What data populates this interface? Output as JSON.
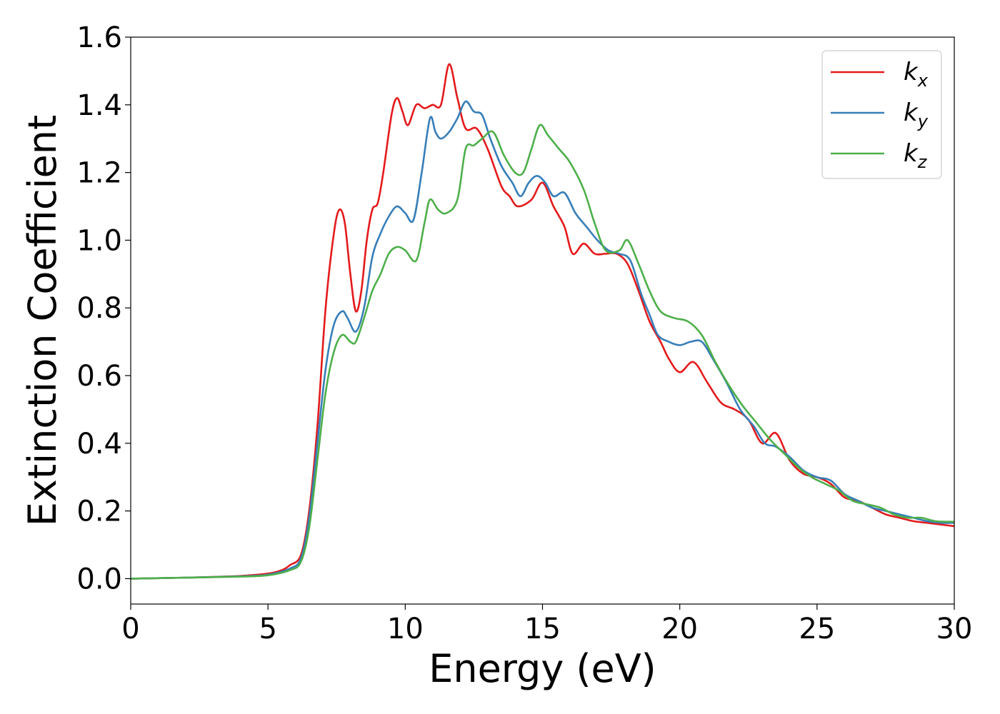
{
  "chart_data": {
    "type": "line",
    "title": "",
    "xlabel": "Energy (eV)",
    "ylabel": "Extinction Coefficient",
    "xlim": [
      0,
      30
    ],
    "ylim": [
      -0.075,
      1.6
    ],
    "xticks": [
      0,
      5,
      10,
      15,
      20,
      25,
      30
    ],
    "yticks": [
      0.0,
      0.2,
      0.4,
      0.6,
      0.8,
      1.0,
      1.2,
      1.4,
      1.6
    ],
    "xtick_labels": [
      "0",
      "5",
      "10",
      "15",
      "20",
      "25",
      "30"
    ],
    "ytick_labels": [
      "0.0",
      "0.2",
      "0.4",
      "0.6",
      "0.8",
      "1.0",
      "1.2",
      "1.4",
      "1.6"
    ],
    "grid": false,
    "legend_position": "top-right",
    "series": [
      {
        "name": "k_x",
        "legend_base": "k",
        "legend_sub": "x",
        "color": "#e41a1c",
        "points": [
          [
            0,
            0.0
          ],
          [
            2,
            0.003
          ],
          [
            4,
            0.008
          ],
          [
            5,
            0.015
          ],
          [
            5.5,
            0.025
          ],
          [
            5.8,
            0.04
          ],
          [
            6.2,
            0.07
          ],
          [
            6.5,
            0.2
          ],
          [
            6.8,
            0.45
          ],
          [
            7.1,
            0.8
          ],
          [
            7.4,
            1.02
          ],
          [
            7.6,
            1.09
          ],
          [
            7.8,
            1.05
          ],
          [
            8.0,
            0.9
          ],
          [
            8.2,
            0.79
          ],
          [
            8.4,
            0.85
          ],
          [
            8.6,
            1.0
          ],
          [
            8.8,
            1.09
          ],
          [
            9.0,
            1.11
          ],
          [
            9.2,
            1.2
          ],
          [
            9.5,
            1.37
          ],
          [
            9.7,
            1.42
          ],
          [
            9.9,
            1.38
          ],
          [
            10.1,
            1.34
          ],
          [
            10.4,
            1.4
          ],
          [
            10.7,
            1.39
          ],
          [
            11.0,
            1.4
          ],
          [
            11.3,
            1.4
          ],
          [
            11.6,
            1.52
          ],
          [
            11.9,
            1.42
          ],
          [
            12.2,
            1.33
          ],
          [
            12.6,
            1.33
          ],
          [
            13.0,
            1.27
          ],
          [
            13.5,
            1.16
          ],
          [
            13.8,
            1.13
          ],
          [
            14.1,
            1.1
          ],
          [
            14.6,
            1.12
          ],
          [
            15.0,
            1.17
          ],
          [
            15.4,
            1.1
          ],
          [
            15.8,
            1.04
          ],
          [
            16.1,
            0.96
          ],
          [
            16.5,
            0.99
          ],
          [
            16.9,
            0.96
          ],
          [
            17.3,
            0.96
          ],
          [
            17.7,
            0.96
          ],
          [
            18.1,
            0.93
          ],
          [
            18.5,
            0.85
          ],
          [
            18.9,
            0.76
          ],
          [
            19.3,
            0.7
          ],
          [
            19.6,
            0.65
          ],
          [
            20.0,
            0.61
          ],
          [
            20.5,
            0.64
          ],
          [
            21.0,
            0.58
          ],
          [
            21.5,
            0.52
          ],
          [
            22.0,
            0.5
          ],
          [
            22.5,
            0.47
          ],
          [
            23.0,
            0.4
          ],
          [
            23.5,
            0.43
          ],
          [
            24.0,
            0.35
          ],
          [
            24.5,
            0.31
          ],
          [
            25.0,
            0.3
          ],
          [
            25.5,
            0.28
          ],
          [
            26.0,
            0.24
          ],
          [
            26.5,
            0.23
          ],
          [
            27.0,
            0.21
          ],
          [
            27.5,
            0.19
          ],
          [
            28.0,
            0.18
          ],
          [
            28.5,
            0.17
          ],
          [
            29.0,
            0.165
          ],
          [
            29.5,
            0.16
          ],
          [
            30.0,
            0.155
          ]
        ]
      },
      {
        "name": "k_y",
        "legend_base": "k",
        "legend_sub": "y",
        "color": "#377eb8",
        "points": [
          [
            0,
            0.0
          ],
          [
            2,
            0.003
          ],
          [
            4,
            0.007
          ],
          [
            5,
            0.012
          ],
          [
            5.8,
            0.03
          ],
          [
            6.2,
            0.06
          ],
          [
            6.5,
            0.18
          ],
          [
            6.8,
            0.4
          ],
          [
            7.1,
            0.62
          ],
          [
            7.4,
            0.75
          ],
          [
            7.7,
            0.79
          ],
          [
            7.9,
            0.77
          ],
          [
            8.2,
            0.73
          ],
          [
            8.5,
            0.8
          ],
          [
            8.8,
            0.95
          ],
          [
            9.1,
            1.02
          ],
          [
            9.4,
            1.07
          ],
          [
            9.7,
            1.1
          ],
          [
            10.0,
            1.08
          ],
          [
            10.3,
            1.06
          ],
          [
            10.6,
            1.2
          ],
          [
            10.9,
            1.36
          ],
          [
            11.1,
            1.32
          ],
          [
            11.3,
            1.3
          ],
          [
            11.6,
            1.32
          ],
          [
            11.9,
            1.36
          ],
          [
            12.2,
            1.41
          ],
          [
            12.5,
            1.38
          ],
          [
            12.8,
            1.37
          ],
          [
            13.1,
            1.3
          ],
          [
            13.5,
            1.22
          ],
          [
            13.9,
            1.17
          ],
          [
            14.2,
            1.13
          ],
          [
            14.5,
            1.17
          ],
          [
            14.8,
            1.19
          ],
          [
            15.1,
            1.17
          ],
          [
            15.4,
            1.13
          ],
          [
            15.8,
            1.14
          ],
          [
            16.2,
            1.08
          ],
          [
            16.6,
            1.04
          ],
          [
            17.0,
            1.0
          ],
          [
            17.4,
            0.97
          ],
          [
            17.8,
            0.96
          ],
          [
            18.2,
            0.94
          ],
          [
            18.6,
            0.84
          ],
          [
            18.9,
            0.78
          ],
          [
            19.2,
            0.72
          ],
          [
            19.6,
            0.7
          ],
          [
            20.0,
            0.69
          ],
          [
            20.4,
            0.7
          ],
          [
            20.8,
            0.7
          ],
          [
            21.2,
            0.65
          ],
          [
            21.7,
            0.58
          ],
          [
            22.2,
            0.5
          ],
          [
            22.7,
            0.45
          ],
          [
            23.1,
            0.4
          ],
          [
            23.5,
            0.39
          ],
          [
            24.0,
            0.36
          ],
          [
            24.5,
            0.32
          ],
          [
            25.0,
            0.3
          ],
          [
            25.5,
            0.29
          ],
          [
            26.0,
            0.25
          ],
          [
            26.5,
            0.23
          ],
          [
            27.0,
            0.21
          ],
          [
            27.5,
            0.2
          ],
          [
            28.0,
            0.19
          ],
          [
            28.5,
            0.18
          ],
          [
            29.0,
            0.17
          ],
          [
            29.5,
            0.165
          ],
          [
            30.0,
            0.165
          ]
        ]
      },
      {
        "name": "k_z",
        "legend_base": "k",
        "legend_sub": "z",
        "color": "#4daf4a",
        "points": [
          [
            0,
            0.0
          ],
          [
            2,
            0.003
          ],
          [
            4,
            0.006
          ],
          [
            5,
            0.01
          ],
          [
            5.8,
            0.025
          ],
          [
            6.2,
            0.05
          ],
          [
            6.5,
            0.15
          ],
          [
            6.8,
            0.35
          ],
          [
            7.1,
            0.55
          ],
          [
            7.4,
            0.67
          ],
          [
            7.7,
            0.72
          ],
          [
            8.0,
            0.7
          ],
          [
            8.2,
            0.7
          ],
          [
            8.5,
            0.77
          ],
          [
            8.8,
            0.85
          ],
          [
            9.1,
            0.9
          ],
          [
            9.4,
            0.96
          ],
          [
            9.7,
            0.98
          ],
          [
            10.0,
            0.97
          ],
          [
            10.4,
            0.94
          ],
          [
            10.7,
            1.05
          ],
          [
            10.9,
            1.12
          ],
          [
            11.2,
            1.09
          ],
          [
            11.5,
            1.08
          ],
          [
            11.9,
            1.12
          ],
          [
            12.2,
            1.27
          ],
          [
            12.5,
            1.28
          ],
          [
            12.8,
            1.3
          ],
          [
            13.2,
            1.32
          ],
          [
            13.6,
            1.25
          ],
          [
            14.0,
            1.2
          ],
          [
            14.3,
            1.2
          ],
          [
            14.6,
            1.27
          ],
          [
            14.9,
            1.34
          ],
          [
            15.2,
            1.31
          ],
          [
            15.6,
            1.27
          ],
          [
            16.0,
            1.23
          ],
          [
            16.5,
            1.15
          ],
          [
            16.9,
            1.05
          ],
          [
            17.3,
            0.97
          ],
          [
            17.8,
            0.97
          ],
          [
            18.1,
            1.0
          ],
          [
            18.5,
            0.93
          ],
          [
            18.9,
            0.85
          ],
          [
            19.3,
            0.79
          ],
          [
            19.8,
            0.77
          ],
          [
            20.3,
            0.76
          ],
          [
            20.8,
            0.72
          ],
          [
            21.3,
            0.64
          ],
          [
            21.8,
            0.57
          ],
          [
            22.3,
            0.51
          ],
          [
            22.8,
            0.46
          ],
          [
            23.3,
            0.41
          ],
          [
            23.8,
            0.37
          ],
          [
            24.3,
            0.33
          ],
          [
            24.8,
            0.3
          ],
          [
            25.3,
            0.28
          ],
          [
            25.8,
            0.26
          ],
          [
            26.3,
            0.23
          ],
          [
            26.8,
            0.22
          ],
          [
            27.3,
            0.21
          ],
          [
            27.8,
            0.19
          ],
          [
            28.3,
            0.18
          ],
          [
            28.8,
            0.18
          ],
          [
            29.3,
            0.17
          ],
          [
            30.0,
            0.168
          ]
        ]
      }
    ]
  }
}
